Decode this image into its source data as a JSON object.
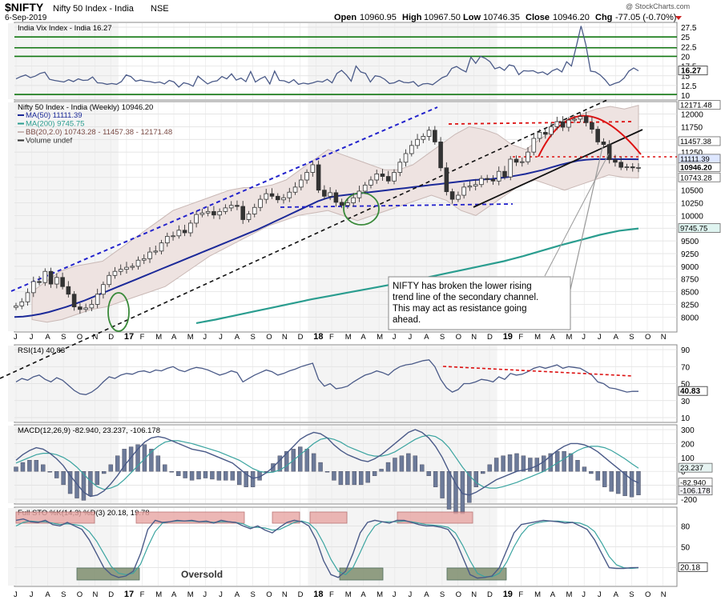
{
  "header": {
    "symbol": "$NIFTY",
    "name": "Nifty 50 Index - India",
    "exchange": "NSE",
    "date": "6-Sep-2019",
    "open_label": "Open",
    "open": "10960.95",
    "high_label": "High",
    "high": "10967.50",
    "low_label": "Low",
    "low": "10746.35",
    "close_label": "Close",
    "close": "10946.20",
    "chg_label": "Chg",
    "chg": "-77.05 (-0.70%)",
    "watermark": "@ StockCharts.com"
  },
  "colors": {
    "price": "#333333",
    "ma50": "#1c2a99",
    "ma200": "#2a9d8f",
    "bb": "#c9b8b5",
    "bb_fill": "#eee3e1",
    "blue_dash": "#2222cc",
    "red": "#dd1111",
    "black": "#111111",
    "indicator": "#4a5a88",
    "signal": "#3aa4a0",
    "green_ring": "#3a8a3a",
    "zone_pink": "#e8a6a3",
    "zone_olive": "#7f8f6f",
    "hist": "#6c7a99",
    "grid": "#dddddd"
  },
  "x_axis": {
    "months": [
      "J",
      "J",
      "A",
      "S",
      "O",
      "N",
      "D",
      "17",
      "F",
      "M",
      "A",
      "M",
      "J",
      "J",
      "A",
      "S",
      "O",
      "N",
      "D",
      "18",
      "F",
      "M",
      "A",
      "M",
      "J",
      "J",
      "A",
      "S",
      "O",
      "N",
      "D",
      "19",
      "F",
      "M",
      "A",
      "M",
      "J",
      "J",
      "A",
      "S",
      "O",
      "N"
    ],
    "bold_labels": [
      "17",
      "18",
      "19"
    ]
  },
  "annotation": {
    "text_lines": [
      "NIFTY has broken the lower rising",
      "trend line of the secondary channel.",
      "This may act as resistance going",
      "ahead."
    ],
    "oversold": "Oversold"
  },
  "chart_data": [
    {
      "type": "line",
      "panel": "vix",
      "title": "India Vix Index - India 16.27",
      "ylim": [
        10,
        27.5
      ],
      "ticks": [
        10,
        12.5,
        15,
        17.5,
        20,
        22.5,
        25,
        27.5
      ],
      "horizontal_lines": [
        25,
        22.2,
        20.0,
        10.2
      ],
      "last": "16.27",
      "series": [
        {
          "name": "India Vix Index - India",
          "values": [
            14.2,
            14.8,
            15.2,
            14.5,
            14.9,
            15.6,
            15.9,
            14.1,
            13.8,
            13.6,
            13.4,
            14.0,
            13.5,
            14.2,
            13.8,
            13.9,
            14.7,
            13.2,
            13.1,
            12.8,
            13.0,
            12.8,
            13.5,
            15.2,
            14.8,
            13.6,
            13.9,
            13.6,
            13.5,
            13.2,
            13.4,
            12.9,
            13.8,
            13.4,
            12.1,
            13.2,
            12.9,
            12.3,
            14.9,
            13.9,
            12.9,
            13.5,
            13.7,
            14.8,
            14.2,
            15.5,
            13.9,
            14.4,
            13.5,
            16.1,
            13.4,
            14.2,
            14.8,
            12.9,
            16.2,
            13.8,
            13.7,
            13.2,
            14.0,
            12.8,
            13.1,
            12.9,
            13.2,
            13.6,
            13.4,
            14.1,
            13.2,
            15.6,
            16.4,
            15.2,
            13.6,
            17.5,
            16.0,
            15.6,
            13.4,
            15.0,
            14.8,
            14.1,
            13.0,
            13.2,
            13.8,
            13.3,
            13.2,
            13.5,
            12.3,
            12.9,
            13.0,
            12.7,
            13.6,
            14.5,
            15.0,
            16.9,
            17.4,
            16.6,
            16.0,
            19.8,
            18.2,
            20.0,
            19.5,
            18.6,
            16.8,
            17.2,
            16.4,
            17.8,
            17.5,
            15.3,
            16.3,
            16.2,
            16.3,
            15.7,
            16.0,
            15.3,
            16.3,
            16.8,
            16.0,
            18.6,
            17.5,
            22.5,
            27.8,
            23.0,
            16.2,
            16.0,
            15.2,
            14.0,
            12.5,
            13.0,
            13.4,
            14.4,
            16.2,
            17.0,
            16.27
          ]
        }
      ]
    },
    {
      "type": "candlestick",
      "panel": "price",
      "title": "Nifty 50 Index - India (Weekly) 10946.20",
      "ylim": [
        7800,
        12150
      ],
      "ticks": [
        8000,
        8250,
        8500,
        8750,
        9000,
        9250,
        9500,
        9750,
        10000,
        10250,
        10500,
        10750,
        11000,
        11250,
        11500,
        11750,
        12000
      ],
      "legend": [
        {
          "label": "MA(50) 11111.39",
          "key": "ma50"
        },
        {
          "label": "MA(200) 9745.75",
          "key": "ma200"
        },
        {
          "label": "BB(20,2.0) 10743.28 - 11457.38 - 12171.48",
          "key": "bb"
        },
        {
          "label": "Volume undef",
          "key": "price"
        }
      ],
      "last_values": {
        "bb_upper": "12171.48",
        "bb_mid": "11457.38",
        "ma50": "11111.39",
        "close": "10946.20",
        "bb_lower": "10743.28",
        "ma200": "9745.75"
      },
      "close": [
        8220,
        8300,
        8480,
        8700,
        8680,
        8900,
        8650,
        8780,
        8600,
        8450,
        8200,
        8150,
        8180,
        8250,
        8450,
        8640,
        8820,
        8900,
        8940,
        8980,
        9000,
        9120,
        9150,
        9280,
        9300,
        9460,
        9590,
        9600,
        9710,
        9660,
        9850,
        10020,
        10050,
        10080,
        10010,
        10080,
        10150,
        10200,
        10180,
        9920,
        10030,
        10160,
        10320,
        10430,
        10380,
        10310,
        10350,
        10460,
        10560,
        10700,
        10850,
        11000,
        10500,
        10380,
        10450,
        10260,
        10200,
        10250,
        10350,
        10480,
        10600,
        10700,
        10820,
        10770,
        10680,
        10850,
        11050,
        11220,
        11380,
        11500,
        11560,
        11680,
        11450,
        10940,
        10470,
        10320,
        10400,
        10560,
        10580,
        10610,
        10730,
        10710,
        10680,
        10870,
        10760,
        11110,
        11050,
        11060,
        11250,
        11520,
        11640,
        11600,
        11750,
        11850,
        11740,
        11880,
        11900,
        11950,
        11830,
        11700,
        11450,
        11400,
        11100,
        11050,
        10950,
        10960,
        10940,
        10946
      ],
      "ma50": [
        8000,
        8010,
        8030,
        8060,
        8100,
        8150,
        8200,
        8260,
        8320,
        8390,
        8460,
        8530,
        8600,
        8670,
        8740,
        8810,
        8880,
        8950,
        9020,
        9090,
        9160,
        9230,
        9300,
        9370,
        9440,
        9510,
        9580,
        9650,
        9720,
        9800,
        9880,
        9960,
        10040,
        10120,
        10200,
        10280,
        10340,
        10380,
        10400,
        10420,
        10440,
        10460,
        10480,
        10500,
        10520,
        10540,
        10560,
        10580,
        10600,
        10620,
        10640,
        10660,
        10680,
        10700,
        10710,
        10720,
        10740,
        10760,
        10790,
        10820,
        10860,
        10900,
        10950,
        11000,
        11040,
        11080,
        11100,
        11110,
        11110,
        11112,
        11110,
        11110,
        11108
      ],
      "ma200": [
        7880,
        7950,
        8030,
        8110,
        8190,
        8270,
        8350,
        8420,
        8490,
        8560,
        8630,
        8700,
        8780,
        8860,
        8940,
        9020,
        9100,
        9200,
        9310,
        9420,
        9520,
        9620,
        9700,
        9745
      ],
      "bb_upper": [
        8500,
        8700,
        8900,
        9000,
        9050,
        9100,
        9300,
        9500,
        9700,
        9900,
        10100,
        10200,
        10300,
        10400,
        10500,
        10550,
        10550,
        10600,
        10700,
        10900,
        11100,
        11300,
        11200,
        11100,
        11000,
        10900,
        10900,
        11000,
        11200,
        11400,
        11600,
        11750,
        11700,
        11600,
        11400,
        11300,
        11500,
        11700,
        11850,
        12000,
        12100,
        12150,
        12100,
        12171
      ],
      "bb_lower": [
        7950,
        7900,
        7950,
        8050,
        8150,
        8200,
        8300,
        8400,
        8500,
        8600,
        8800,
        9000,
        9200,
        9350,
        9500,
        9650,
        9800,
        9900,
        10000,
        10050,
        10100,
        10000,
        9900,
        10000,
        10100,
        10200,
        10300,
        10400,
        10300,
        10100,
        10000,
        10200,
        10400,
        10600,
        10700,
        10600,
        10500,
        10600,
        10700,
        10800,
        10750,
        10743
      ],
      "annotation": "NIFTY has broken the lower rising trend line of the secondary channel. This may act as resistance going ahead."
    },
    {
      "type": "line",
      "panel": "rsi",
      "title": "RSI(14) 40.83",
      "ylim": [
        10,
        90
      ],
      "ticks": [
        10,
        30,
        50,
        70,
        90
      ],
      "last": "40.83",
      "series": [
        {
          "name": "RSI(14)",
          "values": [
            52,
            56,
            54,
            58,
            60,
            55,
            52,
            57,
            54,
            48,
            42,
            38,
            37,
            40,
            45,
            52,
            58,
            56,
            60,
            62,
            61,
            64,
            65,
            63,
            66,
            65,
            68,
            70,
            66,
            64,
            67,
            69,
            68,
            66,
            63,
            60,
            62,
            65,
            63,
            52,
            56,
            60,
            63,
            66,
            64,
            60,
            62,
            65,
            67,
            70,
            72,
            74,
            55,
            47,
            50,
            44,
            45,
            47,
            52,
            56,
            60,
            62,
            65,
            63,
            60,
            66,
            70,
            72,
            73,
            75,
            77,
            78,
            70,
            55,
            45,
            40,
            43,
            50,
            50,
            52,
            55,
            54,
            52,
            58,
            55,
            62,
            60,
            61,
            64,
            68,
            70,
            68,
            70,
            72,
            68,
            70,
            69,
            68,
            64,
            60,
            52,
            50,
            45,
            44,
            42,
            40,
            41,
            40.83
          ]
        }
      ]
    },
    {
      "type": "line",
      "panel": "macd",
      "title": "MACD(12,26,9) -82.940, 23.237, -106.178",
      "ylim": [
        -200,
        300
      ],
      "ticks": [
        -200,
        -100,
        0,
        100,
        200,
        300
      ],
      "last": [
        "23.237",
        "-82.940",
        "-106.178"
      ],
      "series": [
        {
          "name": "MACD",
          "values": [
            80,
            120,
            150,
            170,
            160,
            130,
            90,
            40,
            -30,
            -90,
            -150,
            -180,
            -170,
            -140,
            -90,
            -30,
            40,
            100,
            160,
            210,
            240,
            250,
            240,
            220,
            200,
            180,
            160,
            150,
            140,
            120,
            100,
            80,
            60,
            20,
            -20,
            -50,
            -40,
            -10,
            30,
            80,
            130,
            180,
            230,
            260,
            280,
            270,
            240,
            190,
            150,
            120,
            100,
            80,
            70,
            90,
            120,
            160,
            200,
            240,
            280,
            300,
            280,
            240,
            180,
            100,
            0,
            -90,
            -160,
            -170,
            -150,
            -120,
            -90,
            -60,
            -40,
            -20,
            0,
            10,
            20,
            40,
            70,
            110,
            150,
            180,
            200,
            200,
            190,
            170,
            140,
            100,
            60,
            20,
            -20,
            -60,
            -82.94
          ]
        },
        {
          "name": "Signal",
          "values": [
            60,
            80,
            100,
            120,
            130,
            130,
            120,
            100,
            70,
            30,
            -20,
            -70,
            -110,
            -130,
            -120,
            -100,
            -60,
            -10,
            40,
            90,
            140,
            180,
            210,
            220,
            220,
            210,
            200,
            185,
            170,
            155,
            140,
            120,
            100,
            80,
            50,
            20,
            0,
            -10,
            -5,
            10,
            40,
            80,
            120,
            160,
            200,
            230,
            240,
            230,
            210,
            180,
            160,
            140,
            120,
            110,
            110,
            120,
            140,
            170,
            200,
            230,
            250,
            260,
            250,
            220,
            170,
            100,
            30,
            -30,
            -80,
            -110,
            -120,
            -120,
            -110,
            -95,
            -80,
            -60,
            -40,
            -20,
            0,
            30,
            60,
            90,
            120,
            150,
            170,
            180,
            180,
            170,
            150,
            120,
            90,
            55,
            23.237
          ]
        }
      ]
    },
    {
      "type": "line",
      "panel": "sto",
      "title": "Full STO %K(14,3) %D(3) 20.18, 19.78",
      "ylim": [
        0,
        100
      ],
      "ticks": [
        20,
        50,
        80
      ],
      "last": "20.18",
      "series": [
        {
          "name": "%K",
          "values": [
            88,
            90,
            86,
            85,
            88,
            82,
            80,
            85,
            80,
            75,
            60,
            40,
            20,
            10,
            6,
            8,
            15,
            40,
            75,
            88,
            85,
            86,
            88,
            87,
            88,
            86,
            87,
            84,
            88,
            86,
            85,
            80,
            76,
            80,
            74,
            70,
            78,
            85,
            88,
            86,
            80,
            60,
            30,
            10,
            6,
            15,
            40,
            70,
            85,
            88,
            86,
            84,
            88,
            88,
            85,
            82,
            80,
            80,
            78,
            75,
            60,
            35,
            10,
            5,
            6,
            8,
            20,
            45,
            70,
            82,
            84,
            86,
            88,
            87,
            86,
            84,
            85,
            80,
            75,
            60,
            40,
            20,
            19,
            19,
            20,
            20.18
          ]
        },
        {
          "name": "%D",
          "values": [
            80,
            85,
            87,
            86,
            86,
            84,
            82,
            83,
            82,
            80,
            72,
            58,
            40,
            22,
            12,
            10,
            12,
            25,
            50,
            72,
            84,
            86,
            87,
            87,
            87,
            86,
            86,
            85,
            86,
            86,
            85,
            83,
            78,
            78,
            77,
            74,
            75,
            80,
            85,
            87,
            84,
            74,
            55,
            32,
            15,
            10,
            20,
            42,
            65,
            80,
            86,
            86,
            86,
            87,
            86,
            84,
            82,
            81,
            80,
            78,
            70,
            52,
            30,
            12,
            7,
            7,
            12,
            28,
            50,
            68,
            80,
            84,
            86,
            87,
            87,
            86,
            85,
            84,
            80,
            72,
            55,
            36,
            24,
            20,
            19,
            19.78
          ]
        }
      ]
    }
  ]
}
